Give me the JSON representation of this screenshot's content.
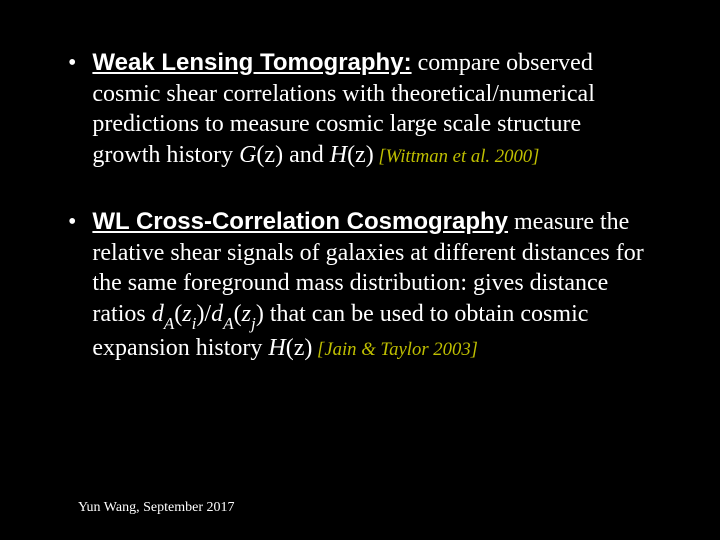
{
  "slide": {
    "background_color": "#000000",
    "text_color": "#ffffff",
    "citation_color": "#bfbf00",
    "bullets": [
      {
        "heading": "Weak Lensing Tomography:",
        "body_pre": "compare observed cosmic shear correlations with theoretical/numerical predictions to measure cosmic large scale structure growth history ",
        "gz": "G",
        "paren_z1": "(z)",
        "and": " and ",
        "hz": "H",
        "paren_z2": "(z)",
        "citation": " [Wittman et al. 2000]"
      },
      {
        "heading": "WL Cross-Correlation Cosmography",
        "body_pre": "measure the relative shear signals of galaxies at different distances for the same foreground mass distribution: gives distance ratios ",
        "da1_d": "d",
        "da1_A": "A",
        "da1_open": "(",
        "da1_z": "z",
        "da1_i": "i",
        "da1_close": ")/",
        "da2_d": "d",
        "da2_A": "A",
        "da2_open": "(",
        "da2_z": "z",
        "da2_j": "j",
        "da2_close": ")",
        "body_post": " that can be used to obtain cosmic expansion history ",
        "hz": "H",
        "paren_z": "(z)",
        "citation": " [Jain & Taylor 2003]"
      }
    ],
    "footer": "Yun Wang, September 2017"
  },
  "typography": {
    "heading_font": "Arial",
    "body_font": "Georgia",
    "body_fontsize_pt": 24,
    "citation_fontsize_pt": 18,
    "footer_fontsize_pt": 14
  }
}
